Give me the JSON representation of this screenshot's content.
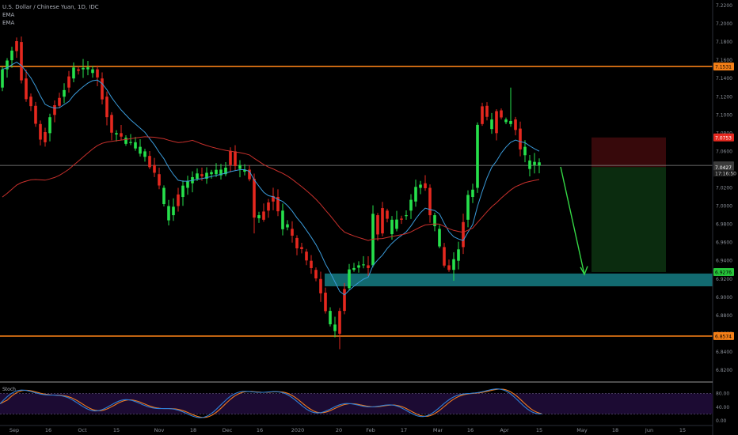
{
  "legend": {
    "symbol": "U.S. Dollar / Chinese Yuan, 1D, IDC",
    "ind1": "EMA",
    "ind2": "EMA"
  },
  "osc_label": "Stoch",
  "colors": {
    "bg": "#000000",
    "up": "#26e04b",
    "down": "#e5281f",
    "ema_fast": "#3a9ad9",
    "ema_slow": "#c8302c",
    "hline": "#f57f17",
    "zone": "#126a70",
    "arrow": "#35d845",
    "stop": "#3a0a0c",
    "target": "#0c2e10",
    "stoch_k": "#2f7fd6",
    "stoch_d": "#f07b20",
    "stoch_bg": "#1c0b33"
  },
  "chart_data": {
    "type": "candlestick",
    "title": "U.S. Dollar / Chinese Yuan, 1D, IDC",
    "ylim": [
      6.81,
      7.225
    ],
    "y_ticks": [
      "7.2200",
      "7.2000",
      "7.1800",
      "7.1600",
      "7.1400",
      "7.1200",
      "7.1000",
      "7.0800",
      "7.0600",
      "7.0400",
      "7.0200",
      "7.0000",
      "6.9800",
      "6.9600",
      "6.9400",
      "6.9200",
      "6.9000",
      "6.8800",
      "6.8600",
      "6.8400",
      "6.8200"
    ],
    "x_ticks": [
      "Sep",
      "16",
      "Oct",
      "15",
      "Nov",
      "18",
      "Dec",
      "16",
      "2020",
      "20",
      "Feb",
      "17",
      "Mar",
      "16",
      "Apr",
      "15",
      "May",
      "18",
      "Jun",
      "15"
    ],
    "price_labels": [
      {
        "value": 7.1531,
        "text": "7.1531",
        "kind": "hline"
      },
      {
        "value": 7.0753,
        "text": "7.0753",
        "kind": "stop"
      },
      {
        "value": 7.0446,
        "text": "7.0446",
        "kind": "last"
      },
      {
        "value": 7.0427,
        "text": "7.0427",
        "kind": "entry"
      },
      {
        "value": 6.9276,
        "text": "6.9276",
        "kind": "target"
      },
      {
        "value": 6.8574,
        "text": "6.8574",
        "kind": "hline"
      }
    ],
    "countdown": "17:16:50",
    "support_zone": [
      6.912,
      6.926
    ],
    "stoch_ticks": [
      "80.00",
      "40.00",
      "0.00"
    ]
  }
}
